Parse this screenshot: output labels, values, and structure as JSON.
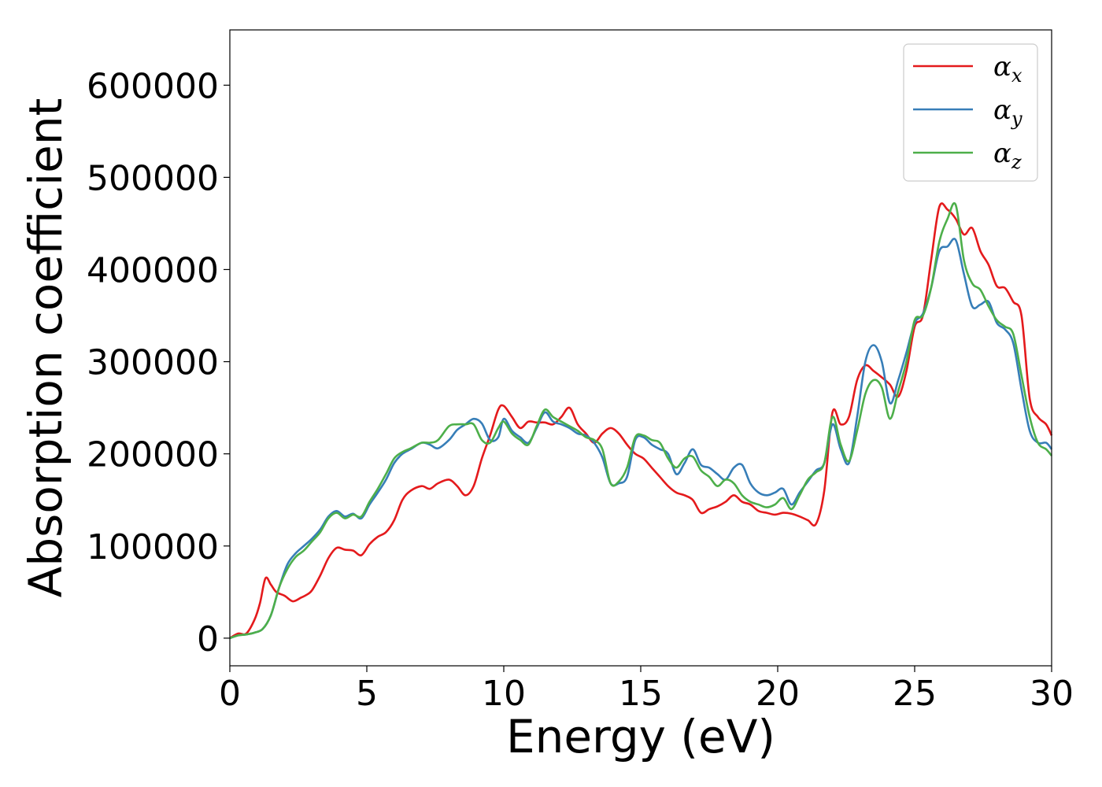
{
  "chart_data": {
    "type": "line",
    "xlabel": "Energy (eV)",
    "ylabel": "Absorption coefficient",
    "xlim": [
      0,
      30
    ],
    "ylim": [
      -30000,
      660000
    ],
    "xticks": [
      "0",
      "5",
      "10",
      "15",
      "20",
      "25",
      "30"
    ],
    "yticks": [
      "0",
      "100000",
      "200000",
      "300000",
      "400000",
      "500000",
      "600000"
    ],
    "grid": false,
    "legend_position": "top-right",
    "series": [
      {
        "name": "α",
        "subscript": "x",
        "color": "#e41a1c",
        "x": [
          0,
          0.3,
          0.6,
          0.9,
          1.1,
          1.3,
          1.5,
          1.7,
          2.0,
          2.3,
          2.6,
          2.8,
          3.0,
          3.3,
          3.6,
          3.9,
          4.2,
          4.5,
          4.8,
          5.1,
          5.4,
          5.7,
          6.0,
          6.3,
          6.6,
          7.0,
          7.3,
          7.6,
          8.0,
          8.3,
          8.6,
          8.9,
          9.2,
          9.5,
          9.8,
          10.0,
          10.3,
          10.6,
          10.9,
          11.2,
          11.5,
          11.8,
          12.1,
          12.4,
          12.7,
          13.0,
          13.3,
          13.6,
          13.9,
          14.2,
          14.5,
          14.8,
          15.1,
          15.4,
          15.7,
          16.0,
          16.3,
          16.6,
          16.9,
          17.2,
          17.5,
          17.8,
          18.1,
          18.4,
          18.7,
          19.0,
          19.3,
          19.6,
          19.9,
          20.2,
          20.5,
          20.8,
          21.1,
          21.4,
          21.7,
          22.0,
          22.3,
          22.6,
          22.9,
          23.2,
          23.5,
          23.8,
          24.1,
          24.4,
          24.7,
          25.0,
          25.3,
          25.6,
          25.9,
          26.2,
          26.5,
          26.8,
          27.1,
          27.4,
          27.7,
          28.0,
          28.3,
          28.6,
          28.9,
          29.2,
          29.5,
          29.8,
          30.0
        ],
        "y": [
          0,
          5000,
          5000,
          20000,
          38000,
          65000,
          58000,
          50000,
          46000,
          40000,
          44000,
          47000,
          52000,
          68000,
          87000,
          98000,
          96000,
          95000,
          90000,
          102000,
          110000,
          115000,
          128000,
          150000,
          160000,
          165000,
          162000,
          168000,
          172000,
          165000,
          155000,
          165000,
          195000,
          220000,
          248000,
          252000,
          240000,
          228000,
          235000,
          234000,
          234000,
          232000,
          240000,
          250000,
          232000,
          222000,
          212000,
          222000,
          228000,
          222000,
          210000,
          200000,
          195000,
          185000,
          175000,
          165000,
          158000,
          155000,
          150000,
          136000,
          140000,
          143000,
          148000,
          155000,
          148000,
          145000,
          138000,
          136000,
          134000,
          136000,
          135000,
          132000,
          128000,
          124000,
          160000,
          245000,
          232000,
          240000,
          280000,
          296000,
          290000,
          283000,
          275000,
          262000,
          290000,
          338000,
          350000,
          410000,
          468000,
          465000,
          455000,
          438000,
          445000,
          420000,
          405000,
          382000,
          380000,
          365000,
          350000,
          260000,
          240000,
          232000,
          220000
        ]
      },
      {
        "name": "α",
        "subscript": "y",
        "color": "#377eb8",
        "x": [
          0,
          0.3,
          0.6,
          0.9,
          1.2,
          1.5,
          1.8,
          2.1,
          2.4,
          2.7,
          3.0,
          3.3,
          3.6,
          3.9,
          4.2,
          4.5,
          4.8,
          5.1,
          5.4,
          5.7,
          6.0,
          6.3,
          6.6,
          7.0,
          7.3,
          7.6,
          8.0,
          8.3,
          8.6,
          8.9,
          9.2,
          9.5,
          9.8,
          10.0,
          10.3,
          10.6,
          10.9,
          11.2,
          11.5,
          11.8,
          12.1,
          12.4,
          12.7,
          13.0,
          13.3,
          13.6,
          13.9,
          14.2,
          14.5,
          14.8,
          15.1,
          15.4,
          15.7,
          16.0,
          16.3,
          16.6,
          16.9,
          17.2,
          17.5,
          17.8,
          18.1,
          18.4,
          18.7,
          19.0,
          19.3,
          19.6,
          19.9,
          20.2,
          20.5,
          20.8,
          21.1,
          21.4,
          21.7,
          22.0,
          22.3,
          22.6,
          22.9,
          23.2,
          23.5,
          23.8,
          24.1,
          24.4,
          24.7,
          25.0,
          25.3,
          25.6,
          25.9,
          26.2,
          26.5,
          26.8,
          27.1,
          27.4,
          27.7,
          28.0,
          28.3,
          28.6,
          28.9,
          29.2,
          29.5,
          29.8,
          30.0
        ],
        "y": [
          0,
          3000,
          4000,
          6000,
          10000,
          25000,
          55000,
          80000,
          92000,
          100000,
          108000,
          118000,
          132000,
          138000,
          132000,
          135000,
          130000,
          145000,
          158000,
          172000,
          190000,
          200000,
          205000,
          212000,
          210000,
          206000,
          215000,
          226000,
          232000,
          238000,
          233000,
          215000,
          218000,
          238000,
          225000,
          218000,
          212000,
          228000,
          245000,
          235000,
          232000,
          228000,
          222000,
          220000,
          212000,
          196000,
          168000,
          168000,
          175000,
          215000,
          218000,
          210000,
          205000,
          200000,
          178000,
          190000,
          205000,
          188000,
          185000,
          178000,
          172000,
          185000,
          188000,
          168000,
          158000,
          155000,
          158000,
          162000,
          145000,
          158000,
          170000,
          182000,
          190000,
          232000,
          205000,
          190000,
          240000,
          300000,
          318000,
          300000,
          255000,
          280000,
          310000,
          342000,
          352000,
          380000,
          420000,
          425000,
          432000,
          395000,
          360000,
          362000,
          365000,
          342000,
          335000,
          320000,
          270000,
          225000,
          212000,
          212000,
          205000
        ]
      },
      {
        "name": "α",
        "subscript": "z",
        "color": "#4daf4a",
        "x": [
          0,
          0.3,
          0.6,
          0.9,
          1.2,
          1.5,
          1.8,
          2.1,
          2.4,
          2.7,
          3.0,
          3.3,
          3.6,
          3.9,
          4.2,
          4.5,
          4.8,
          5.1,
          5.4,
          5.7,
          6.0,
          6.3,
          6.6,
          7.0,
          7.3,
          7.6,
          8.0,
          8.3,
          8.6,
          8.9,
          9.2,
          9.5,
          9.8,
          10.0,
          10.3,
          10.6,
          10.9,
          11.2,
          11.5,
          11.8,
          12.1,
          12.4,
          12.7,
          13.0,
          13.3,
          13.6,
          13.9,
          14.2,
          14.5,
          14.8,
          15.1,
          15.4,
          15.7,
          16.0,
          16.3,
          16.6,
          16.9,
          17.2,
          17.5,
          17.8,
          18.1,
          18.4,
          18.7,
          19.0,
          19.3,
          19.6,
          19.9,
          20.2,
          20.5,
          20.8,
          21.1,
          21.4,
          21.7,
          22.0,
          22.3,
          22.6,
          22.9,
          23.2,
          23.5,
          23.8,
          24.1,
          24.4,
          24.7,
          25.0,
          25.3,
          25.6,
          25.9,
          26.2,
          26.5,
          26.8,
          27.1,
          27.4,
          27.7,
          28.0,
          28.3,
          28.6,
          28.9,
          29.2,
          29.5,
          29.8,
          30.0
        ],
        "y": [
          0,
          3000,
          4000,
          6000,
          10000,
          25000,
          55000,
          75000,
          88000,
          95000,
          105000,
          115000,
          130000,
          136000,
          130000,
          134000,
          132000,
          148000,
          162000,
          178000,
          195000,
          202000,
          206000,
          212000,
          212000,
          215000,
          230000,
          232000,
          232000,
          232000,
          215000,
          212000,
          228000,
          235000,
          222000,
          215000,
          210000,
          230000,
          248000,
          240000,
          235000,
          230000,
          225000,
          218000,
          215000,
          205000,
          168000,
          170000,
          185000,
          218000,
          220000,
          215000,
          212000,
          195000,
          185000,
          195000,
          197000,
          182000,
          175000,
          165000,
          172000,
          168000,
          155000,
          148000,
          145000,
          142000,
          145000,
          152000,
          140000,
          155000,
          172000,
          180000,
          190000,
          240000,
          210000,
          192000,
          225000,
          265000,
          280000,
          272000,
          238000,
          268000,
          300000,
          345000,
          350000,
          380000,
          430000,
          455000,
          470000,
          410000,
          385000,
          378000,
          360000,
          345000,
          338000,
          330000,
          285000,
          240000,
          212000,
          205000,
          198000
        ]
      }
    ]
  }
}
